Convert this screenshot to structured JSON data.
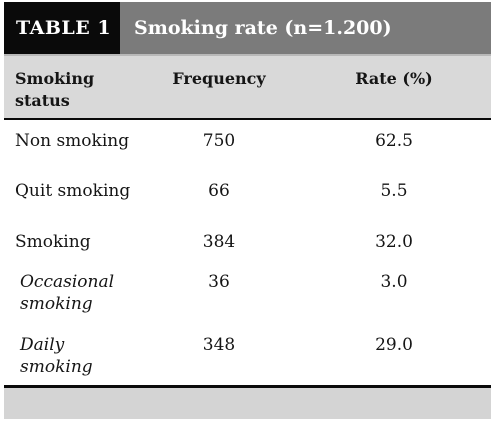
{
  "table": {
    "label": "TABLE 1",
    "title": "Smoking rate (n=1.200)",
    "headers": [
      "Smoking status",
      "Frequency",
      "Rate (%)"
    ],
    "rows": [
      {
        "status": "Non smoking",
        "frequency": "750",
        "rate": "62.5",
        "sub": false
      },
      {
        "status": "Quit smoking",
        "frequency": "66",
        "rate": "5.5",
        "sub": false
      },
      {
        "status": "Smoking",
        "frequency": "384",
        "rate": "32.0",
        "sub": false
      },
      {
        "status": "Occasional smoking",
        "frequency": "36",
        "rate": "3.0",
        "sub": true
      },
      {
        "status": "Daily smoking",
        "frequency": "348",
        "rate": "29.0",
        "sub": true
      }
    ]
  }
}
